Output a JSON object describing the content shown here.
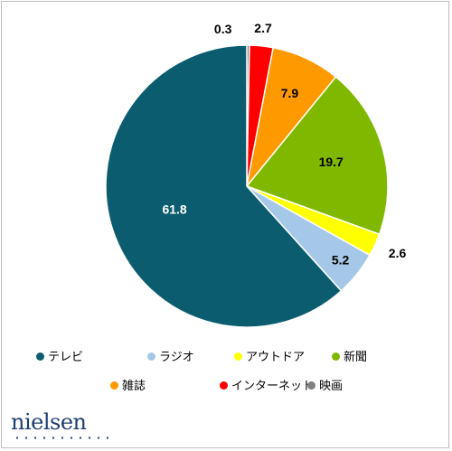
{
  "chart_data": {
    "type": "pie",
    "title": "",
    "start": "12 o'clock, clockwise",
    "legend_position": "bottom",
    "slices": [
      {
        "label": "映画",
        "value": 0.3,
        "color": "#7f7f7f"
      },
      {
        "label": "インターネット",
        "value": 2.7,
        "color": "#ff0000"
      },
      {
        "label": "雑誌",
        "value": 7.9,
        "color": "#ff9900"
      },
      {
        "label": "新聞",
        "value": 19.7,
        "color": "#80b800"
      },
      {
        "label": "アウトドア",
        "value": 2.6,
        "color": "#ffff00"
      },
      {
        "label": "ラジオ",
        "value": 5.2,
        "color": "#a6c8e8"
      },
      {
        "label": "テレビ",
        "value": 61.8,
        "color": "#0b5c6e"
      }
    ],
    "legend": [
      {
        "label": "テレビ",
        "color": "#0b5c6e"
      },
      {
        "label": "ラジオ",
        "color": "#a6c8e8"
      },
      {
        "label": "アウトドア",
        "color": "#ffff00"
      },
      {
        "label": "新聞",
        "color": "#80b800"
      },
      {
        "label": "雑誌",
        "color": "#ff9900"
      },
      {
        "label": "インターネット",
        "color": "#ff0000"
      },
      {
        "label": "映画",
        "color": "#7f7f7f"
      }
    ]
  },
  "logo": {
    "text": "nielsen"
  }
}
